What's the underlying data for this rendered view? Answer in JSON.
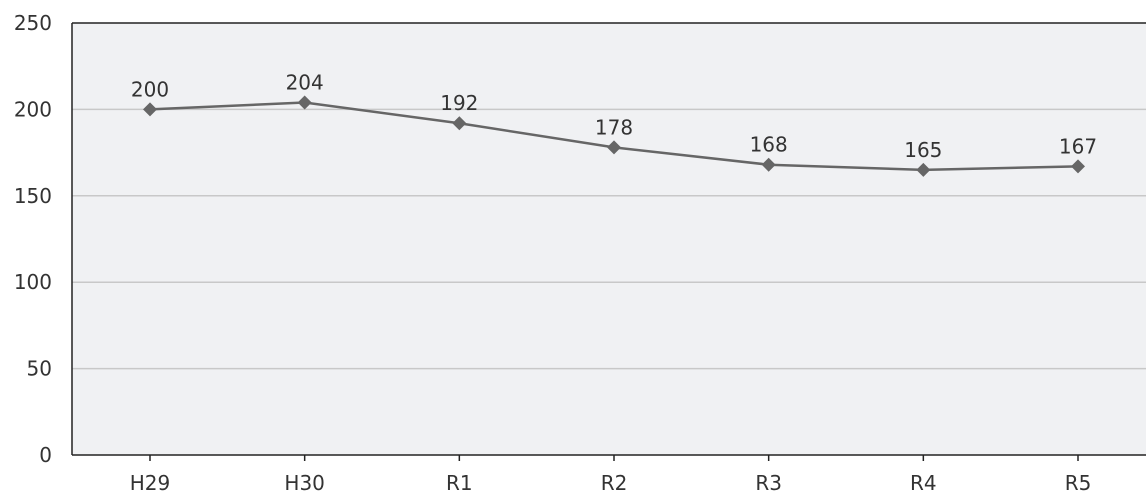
{
  "chart_data": {
    "type": "line",
    "title": "",
    "xlabel": "",
    "ylabel": "",
    "categories": [
      "H29",
      "H30",
      "R1",
      "R2",
      "R3",
      "R4",
      "R5"
    ],
    "series": [
      {
        "values": [
          200,
          204,
          192,
          178,
          168,
          165,
          167
        ]
      }
    ],
    "data_labels": [
      "200",
      "204",
      "192",
      "178",
      "168",
      "165",
      "167"
    ],
    "ylim": [
      0,
      250
    ],
    "yticks": [
      0,
      50,
      100,
      150,
      200,
      250
    ],
    "ytick_labels": [
      "0",
      "50",
      "100",
      "150",
      "200",
      "250"
    ],
    "grid": true,
    "legend": "none",
    "colors": {
      "plot_background": "#f0f1f3",
      "line": "#666666",
      "marker": "#666666",
      "gridline": "#c8c8c8",
      "axis": "#222222",
      "text": "#333333"
    }
  }
}
